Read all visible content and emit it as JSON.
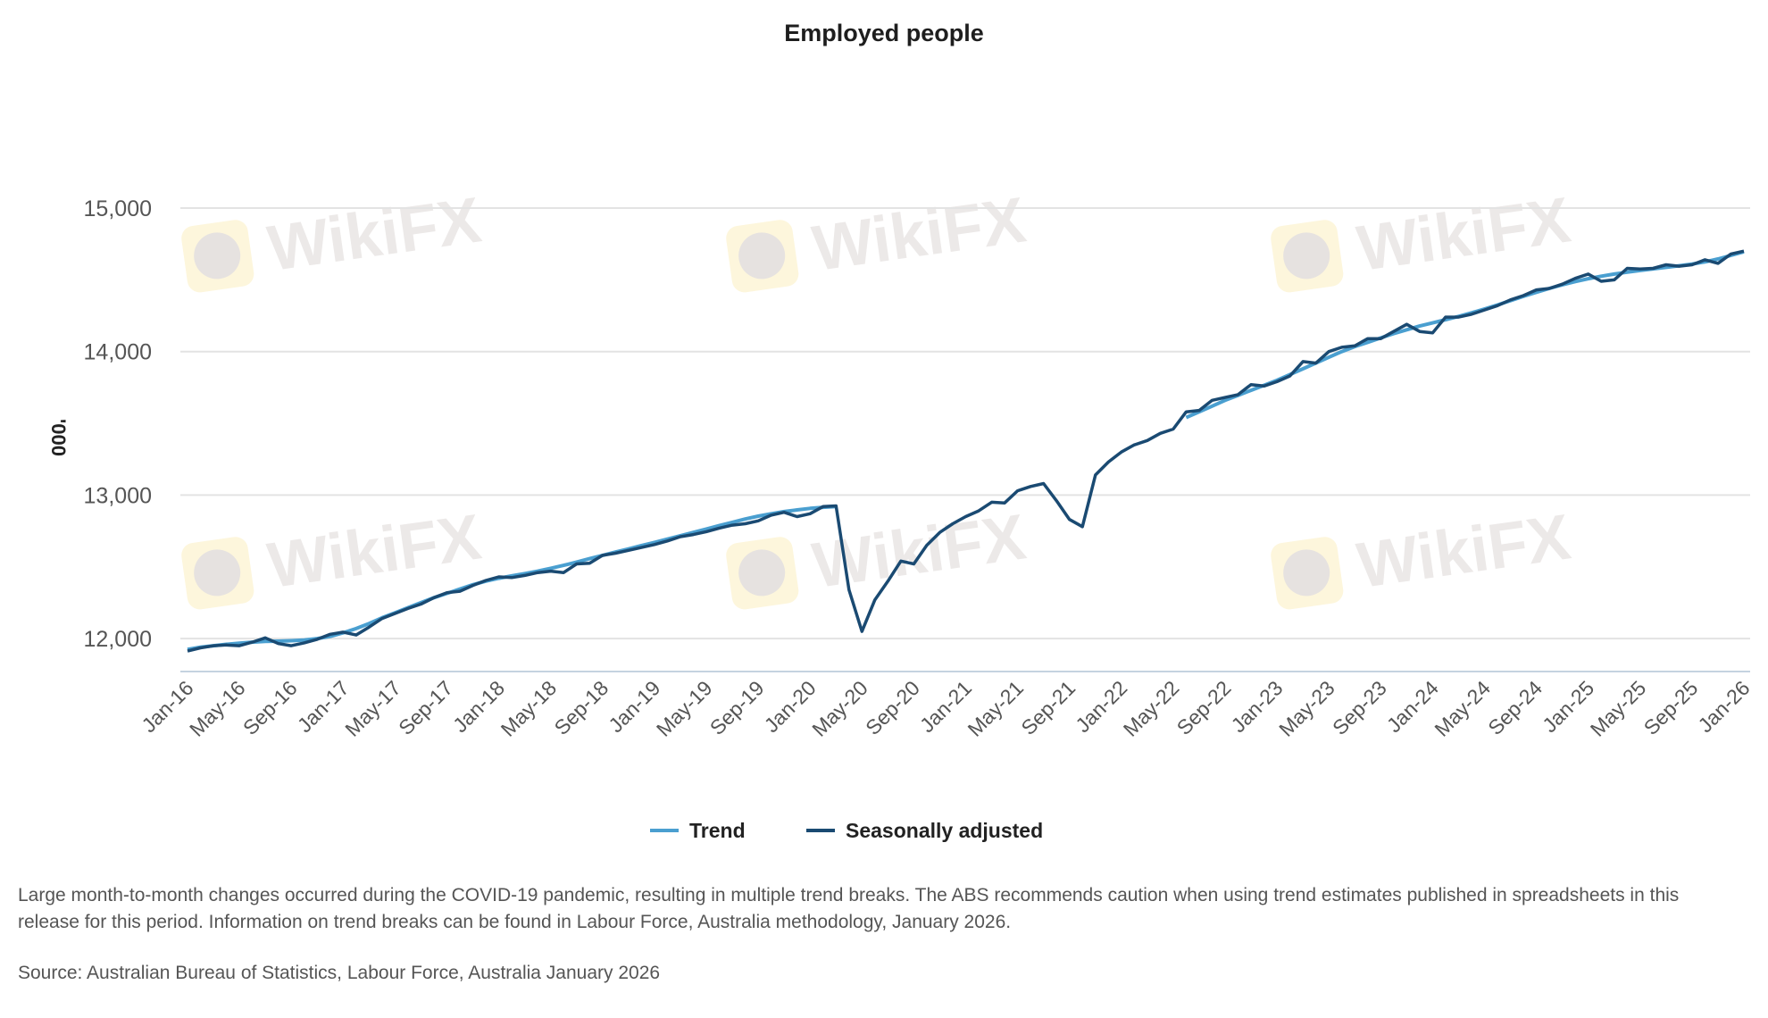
{
  "title": "Employed people",
  "legend": [
    {
      "label": "Trend",
      "color": "#4a9fd0"
    },
    {
      "label": "Seasonally adjusted",
      "color": "#1a4a72"
    }
  ],
  "note": "Large month-to-month changes occurred during the COVID-19 pandemic, resulting in multiple trend breaks. The ABS recommends caution when using trend estimates published in spreadsheets in this release for this period. Information on trend breaks can be found in Labour Force, Australia methodology, January 2026.",
  "source": "Source: Australian Bureau of Statistics, Labour Force, Australia January 2026",
  "watermark": "WikiFX",
  "chart_data": {
    "type": "line",
    "title": "Employed people",
    "xlabel": "",
    "ylabel": "'000",
    "ylim": [
      11850,
      15000
    ],
    "yticks": [
      12000,
      13000,
      14000,
      15000
    ],
    "ytick_labels": [
      "12,000",
      "13,000",
      "14,000",
      "15,000"
    ],
    "grid": true,
    "legend_position": "bottom",
    "x_tick_labels": [
      "Jan-16",
      "May-16",
      "Sep-16",
      "Jan-17",
      "May-17",
      "Sep-17",
      "Jan-18",
      "May-18",
      "Sep-18",
      "Jan-19",
      "May-19",
      "Sep-19",
      "Jan-20",
      "May-20",
      "Sep-20",
      "Jan-21",
      "May-21",
      "Sep-21",
      "Jan-22",
      "May-22",
      "Sep-22",
      "Jan-23",
      "May-23",
      "Sep-23",
      "Jan-24",
      "May-24",
      "Sep-24",
      "Jan-25",
      "May-25",
      "Sep-25",
      "Jan-26"
    ],
    "x_start": "Jan-16",
    "x_end": "Jan-26",
    "frequency": "monthly",
    "series": [
      {
        "name": "Seasonally adjusted",
        "color": "#1a4a72",
        "values": [
          11913,
          11935,
          11950,
          11955,
          11950,
          11975,
          12005,
          11965,
          11950,
          11970,
          11995,
          12030,
          12045,
          12025,
          12080,
          12140,
          12175,
          12210,
          12240,
          12285,
          12320,
          12330,
          12370,
          12405,
          12430,
          12425,
          12440,
          12460,
          12470,
          12460,
          12520,
          12525,
          12580,
          12595,
          12615,
          12635,
          12655,
          12680,
          12710,
          12725,
          12745,
          12770,
          12790,
          12800,
          12820,
          12860,
          12880,
          12850,
          12870,
          12920,
          12925,
          12340,
          12050,
          12270,
          12400,
          12540,
          12520,
          12650,
          12740,
          12800,
          12850,
          12890,
          12950,
          12945,
          13030,
          13060,
          13080,
          12960,
          12830,
          12780,
          13140,
          13230,
          13300,
          13350,
          13380,
          13430,
          13460,
          13580,
          13590,
          13660,
          13680,
          13700,
          13770,
          13760,
          13790,
          13830,
          13930,
          13920,
          14000,
          14030,
          14040,
          14090,
          14090,
          14140,
          14190,
          14140,
          14130,
          14240,
          14240,
          14260,
          14290,
          14320,
          14360,
          14390,
          14430,
          14440,
          14470,
          14510,
          14540,
          14490,
          14500,
          14580,
          14575,
          14580,
          14605,
          14595,
          14605,
          14640,
          14615,
          14680,
          14700
        ]
      },
      {
        "name": "Trend",
        "color": "#4a9fd0",
        "values": [
          11925,
          11940,
          11950,
          11960,
          11968,
          11975,
          11980,
          11982,
          11985,
          11990,
          12000,
          12015,
          12040,
          12070,
          12105,
          12145,
          12180,
          12215,
          12250,
          12285,
          12315,
          12345,
          12375,
          12400,
          12420,
          12437,
          12453,
          12470,
          12490,
          12510,
          12533,
          12557,
          12580,
          12603,
          12625,
          12648,
          12670,
          12693,
          12717,
          12740,
          12763,
          12787,
          12810,
          12833,
          12853,
          12870,
          12885,
          12897,
          12907,
          12915,
          12920,
          null,
          null,
          null,
          null,
          null,
          null,
          null,
          null,
          null,
          null,
          null,
          null,
          null,
          null,
          null,
          null,
          null,
          null,
          null,
          null,
          null,
          null,
          null,
          null,
          null,
          null,
          13540,
          13580,
          13620,
          13660,
          13695,
          13730,
          13765,
          13800,
          13840,
          13880,
          13920,
          13960,
          14000,
          14035,
          14065,
          14095,
          14125,
          14152,
          14178,
          14200,
          14222,
          14245,
          14270,
          14297,
          14325,
          14355,
          14385,
          14413,
          14440,
          14465,
          14488,
          14508,
          14525,
          14540,
          14553,
          14565,
          14576,
          14587,
          14598,
          14610,
          14625,
          14645,
          14670,
          14695
        ]
      }
    ]
  }
}
